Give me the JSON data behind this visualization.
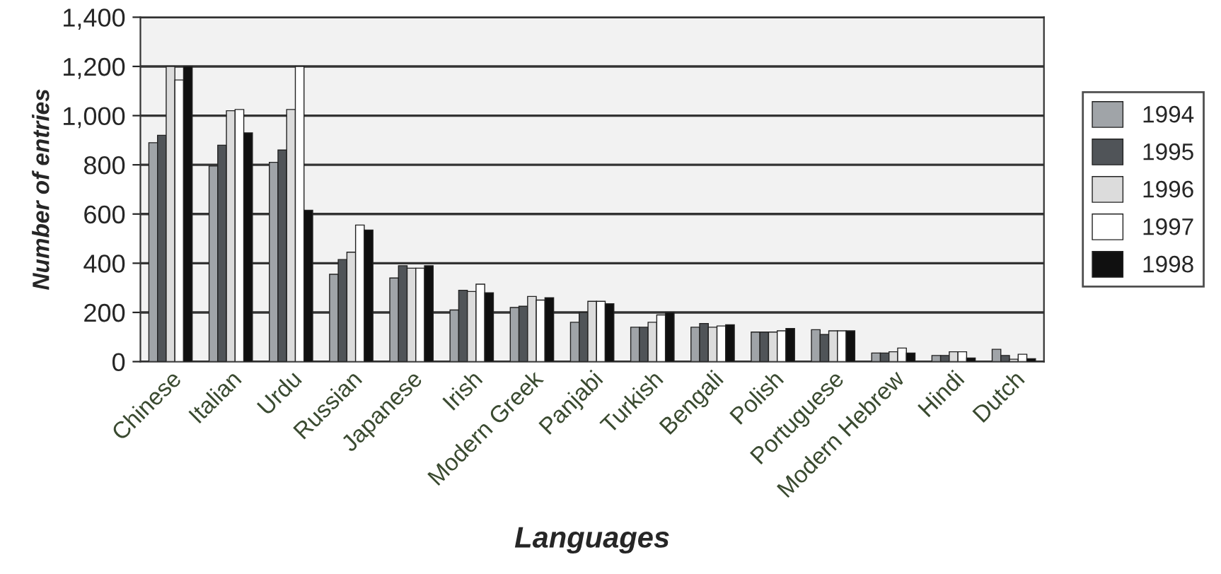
{
  "chart_data": {
    "type": "bar",
    "xlabel": "Languages",
    "ylabel": "Number of entries",
    "categories": [
      "Chinese",
      "Italian",
      "Urdu",
      "Russian",
      "Japanese",
      "Irish",
      "Modern Greek",
      "Panjabi",
      "Turkish",
      "Bengali",
      "Polish",
      "Portuguese",
      "Modern Hebrew",
      "Hindi",
      "Dutch"
    ],
    "series": [
      {
        "name": "1994",
        "color": "#a0a4a8",
        "values": [
          890,
          795,
          810,
          355,
          340,
          210,
          220,
          160,
          140,
          140,
          120,
          130,
          35,
          25,
          50
        ]
      },
      {
        "name": "1995",
        "color": "#505458",
        "values": [
          920,
          880,
          860,
          415,
          390,
          290,
          225,
          200,
          140,
          155,
          120,
          110,
          35,
          25,
          25
        ]
      },
      {
        "name": "1996",
        "color": "#dcdcdc",
        "values": [
          1200,
          1020,
          1025,
          445,
          380,
          285,
          265,
          245,
          160,
          140,
          120,
          125,
          40,
          40,
          10
        ]
      },
      {
        "name": "1997",
        "color": "#ffffff",
        "values": [
          1145,
          1025,
          1200,
          555,
          380,
          315,
          250,
          245,
          190,
          145,
          125,
          125,
          55,
          40,
          30
        ]
      },
      {
        "name": "1998",
        "color": "#101010",
        "values": [
          1200,
          930,
          615,
          535,
          390,
          280,
          260,
          235,
          200,
          150,
          135,
          125,
          35,
          15,
          12
        ]
      }
    ],
    "ylim": [
      0,
      1400
    ],
    "yticks": [
      {
        "value": 0,
        "label": "0"
      },
      {
        "value": 200,
        "label": "200"
      },
      {
        "value": 400,
        "label": "400"
      },
      {
        "value": 600,
        "label": "600"
      },
      {
        "value": 800,
        "label": "800"
      },
      {
        "value": 1000,
        "label": "1,000"
      },
      {
        "value": 1200,
        "label": "1,200"
      },
      {
        "value": 1400,
        "label": "1,400"
      }
    ],
    "grid": "y",
    "legend": "right"
  }
}
